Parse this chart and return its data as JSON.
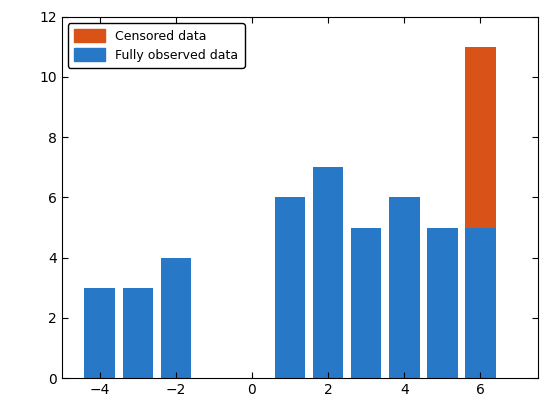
{
  "bar_centers": [
    -4,
    -3,
    -2,
    1,
    2,
    3,
    4,
    5,
    6
  ],
  "blue_values": [
    3,
    3,
    4,
    6,
    7,
    5,
    6,
    5,
    5
  ],
  "orange_values": [
    0,
    0,
    0,
    0,
    0,
    0,
    0,
    0,
    6
  ],
  "bar_width": 0.8,
  "blue_color": "#2878c8",
  "orange_color": "#d95319",
  "xlim": [
    -5,
    7.5
  ],
  "ylim": [
    0,
    12
  ],
  "xticks": [
    -4,
    -2,
    0,
    2,
    4,
    6
  ],
  "yticks": [
    0,
    2,
    4,
    6,
    8,
    10,
    12
  ],
  "legend_censored": "Censored data",
  "legend_fully": "Fully observed data",
  "background_color": "#ffffff",
  "figsize": [
    5.6,
    4.2
  ],
  "dpi": 100
}
